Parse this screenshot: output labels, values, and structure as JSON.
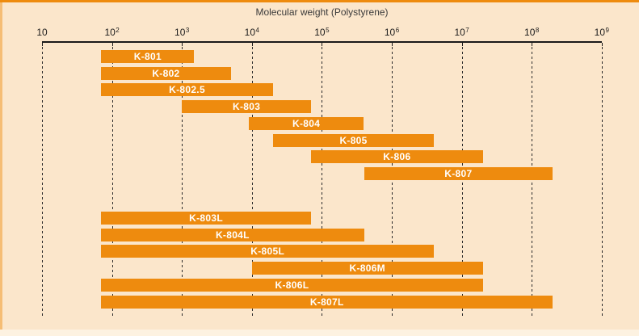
{
  "frame": {
    "background_color": "#fbe6cb",
    "top_edge_color": "#ee8b0e",
    "left_edge_color": "#ee8b0e"
  },
  "chart_data": {
    "type": "bar",
    "subtype": "horizontal-range-bars",
    "title": "Molecular weight (Polystyrene)",
    "bar_color": "#ee8b0e",
    "bar_label_color": "#ffffff",
    "grid": "dashed-vertical-per-decade",
    "x_axis": {
      "scale": "log10",
      "min": 10,
      "max": 1000000000,
      "ticks": [
        {
          "base": "10",
          "exp": ""
        },
        {
          "base": "10",
          "exp": "2"
        },
        {
          "base": "10",
          "exp": "3"
        },
        {
          "base": "10",
          "exp": "4"
        },
        {
          "base": "10",
          "exp": "5"
        },
        {
          "base": "10",
          "exp": "6"
        },
        {
          "base": "10",
          "exp": "7"
        },
        {
          "base": "10",
          "exp": "8"
        },
        {
          "base": "10",
          "exp": "9"
        }
      ]
    },
    "groups": [
      {
        "name": "standard-columns",
        "bars": [
          {
            "label": "K-801",
            "mw_range": [
              70,
              1500
            ]
          },
          {
            "label": "K-802",
            "mw_range": [
              70,
              5000
            ]
          },
          {
            "label": "K-802.5",
            "mw_range": [
              70,
              20000
            ]
          },
          {
            "label": "K-803",
            "mw_range": [
              1000,
              70000
            ]
          },
          {
            "label": "K-804",
            "mw_range": [
              9000,
              400000
            ]
          },
          {
            "label": "K-805",
            "mw_range": [
              20000,
              4000000
            ]
          },
          {
            "label": "K-806",
            "mw_range": [
              70000,
              20000000
            ]
          },
          {
            "label": "K-807",
            "mw_range": [
              400000,
              200000000
            ]
          }
        ]
      },
      {
        "name": "linear-mixed-columns",
        "bars": [
          {
            "label": "K-803L",
            "mw_range": [
              70,
              70000
            ]
          },
          {
            "label": "K-804L",
            "mw_range": [
              70,
              400000
            ]
          },
          {
            "label": "K-805L",
            "mw_range": [
              70,
              4000000
            ]
          },
          {
            "label": "K-806M",
            "mw_range": [
              10000,
              20000000
            ]
          },
          {
            "label": "K-806L",
            "mw_range": [
              70,
              20000000
            ]
          },
          {
            "label": "K-807L",
            "mw_range": [
              70,
              200000000
            ]
          }
        ]
      }
    ]
  }
}
